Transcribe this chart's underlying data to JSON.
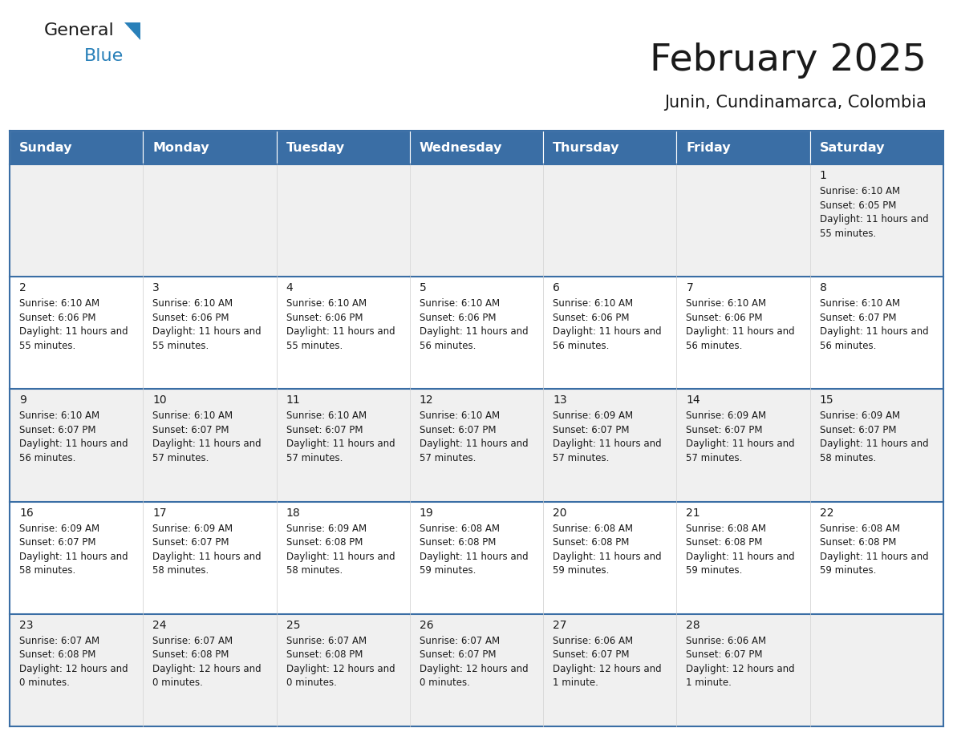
{
  "title": "February 2025",
  "subtitle": "Junin, Cundinamarca, Colombia",
  "days_of_week": [
    "Sunday",
    "Monday",
    "Tuesday",
    "Wednesday",
    "Thursday",
    "Friday",
    "Saturday"
  ],
  "header_bg": "#3a6ea5",
  "header_text": "#ffffff",
  "cell_bg_even": "#f0f0f0",
  "cell_bg_odd": "#ffffff",
  "cell_border": "#3a6ea5",
  "day_number_color": "#1a1a1a",
  "info_text_color": "#1a1a1a",
  "background_color": "#ffffff",
  "logo_general_color": "#1a1a1a",
  "logo_blue_color": "#2980b9",
  "logo_triangle_color": "#2980b9",
  "title_color": "#1a1a1a",
  "subtitle_color": "#1a1a1a",
  "calendar_data": [
    [
      null,
      null,
      null,
      null,
      null,
      null,
      {
        "day": 1,
        "sunrise": "6:10 AM",
        "sunset": "6:05 PM",
        "daylight": "11 hours and 55 minutes."
      }
    ],
    [
      {
        "day": 2,
        "sunrise": "6:10 AM",
        "sunset": "6:06 PM",
        "daylight": "11 hours and 55 minutes."
      },
      {
        "day": 3,
        "sunrise": "6:10 AM",
        "sunset": "6:06 PM",
        "daylight": "11 hours and 55 minutes."
      },
      {
        "day": 4,
        "sunrise": "6:10 AM",
        "sunset": "6:06 PM",
        "daylight": "11 hours and 55 minutes."
      },
      {
        "day": 5,
        "sunrise": "6:10 AM",
        "sunset": "6:06 PM",
        "daylight": "11 hours and 56 minutes."
      },
      {
        "day": 6,
        "sunrise": "6:10 AM",
        "sunset": "6:06 PM",
        "daylight": "11 hours and 56 minutes."
      },
      {
        "day": 7,
        "sunrise": "6:10 AM",
        "sunset": "6:06 PM",
        "daylight": "11 hours and 56 minutes."
      },
      {
        "day": 8,
        "sunrise": "6:10 AM",
        "sunset": "6:07 PM",
        "daylight": "11 hours and 56 minutes."
      }
    ],
    [
      {
        "day": 9,
        "sunrise": "6:10 AM",
        "sunset": "6:07 PM",
        "daylight": "11 hours and 56 minutes."
      },
      {
        "day": 10,
        "sunrise": "6:10 AM",
        "sunset": "6:07 PM",
        "daylight": "11 hours and 57 minutes."
      },
      {
        "day": 11,
        "sunrise": "6:10 AM",
        "sunset": "6:07 PM",
        "daylight": "11 hours and 57 minutes."
      },
      {
        "day": 12,
        "sunrise": "6:10 AM",
        "sunset": "6:07 PM",
        "daylight": "11 hours and 57 minutes."
      },
      {
        "day": 13,
        "sunrise": "6:09 AM",
        "sunset": "6:07 PM",
        "daylight": "11 hours and 57 minutes."
      },
      {
        "day": 14,
        "sunrise": "6:09 AM",
        "sunset": "6:07 PM",
        "daylight": "11 hours and 57 minutes."
      },
      {
        "day": 15,
        "sunrise": "6:09 AM",
        "sunset": "6:07 PM",
        "daylight": "11 hours and 58 minutes."
      }
    ],
    [
      {
        "day": 16,
        "sunrise": "6:09 AM",
        "sunset": "6:07 PM",
        "daylight": "11 hours and 58 minutes."
      },
      {
        "day": 17,
        "sunrise": "6:09 AM",
        "sunset": "6:07 PM",
        "daylight": "11 hours and 58 minutes."
      },
      {
        "day": 18,
        "sunrise": "6:09 AM",
        "sunset": "6:08 PM",
        "daylight": "11 hours and 58 minutes."
      },
      {
        "day": 19,
        "sunrise": "6:08 AM",
        "sunset": "6:08 PM",
        "daylight": "11 hours and 59 minutes."
      },
      {
        "day": 20,
        "sunrise": "6:08 AM",
        "sunset": "6:08 PM",
        "daylight": "11 hours and 59 minutes."
      },
      {
        "day": 21,
        "sunrise": "6:08 AM",
        "sunset": "6:08 PM",
        "daylight": "11 hours and 59 minutes."
      },
      {
        "day": 22,
        "sunrise": "6:08 AM",
        "sunset": "6:08 PM",
        "daylight": "11 hours and 59 minutes."
      }
    ],
    [
      {
        "day": 23,
        "sunrise": "6:07 AM",
        "sunset": "6:08 PM",
        "daylight": "12 hours and 0 minutes."
      },
      {
        "day": 24,
        "sunrise": "6:07 AM",
        "sunset": "6:08 PM",
        "daylight": "12 hours and 0 minutes."
      },
      {
        "day": 25,
        "sunrise": "6:07 AM",
        "sunset": "6:08 PM",
        "daylight": "12 hours and 0 minutes."
      },
      {
        "day": 26,
        "sunrise": "6:07 AM",
        "sunset": "6:07 PM",
        "daylight": "12 hours and 0 minutes."
      },
      {
        "day": 27,
        "sunrise": "6:06 AM",
        "sunset": "6:07 PM",
        "daylight": "12 hours and 1 minute."
      },
      {
        "day": 28,
        "sunrise": "6:06 AM",
        "sunset": "6:07 PM",
        "daylight": "12 hours and 1 minute."
      },
      null
    ]
  ]
}
